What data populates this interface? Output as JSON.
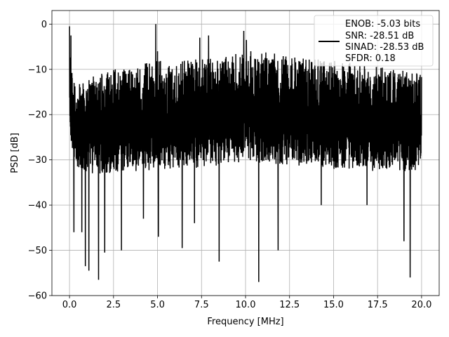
{
  "chart_data": {
    "type": "line",
    "title": "",
    "xlabel": "Frequency [MHz]",
    "ylabel": "PSD [dB]",
    "xlim": [
      -1.0,
      21.0
    ],
    "ylim": [
      -60,
      3
    ],
    "xticks": [
      0.0,
      2.5,
      5.0,
      7.5,
      10.0,
      12.5,
      15.0,
      17.5,
      20.0
    ],
    "xtick_labels": [
      "0.0",
      "2.5",
      "5.0",
      "7.5",
      "10.0",
      "12.5",
      "15.0",
      "17.5",
      "20.0"
    ],
    "yticks": [
      0,
      -10,
      -20,
      -30,
      -40,
      -50,
      -60
    ],
    "ytick_labels": [
      "0",
      "−10",
      "−20",
      "−30",
      "−40",
      "−50",
      "−60"
    ],
    "grid": true,
    "legend_position": "upper-right",
    "legend_lines": [
      "ENOB: -5.03 bits",
      "SNR: -28.51 dB",
      "SINAD: -28.53 dB",
      "SFDR: 0.18"
    ],
    "series": [
      {
        "color": "#000000",
        "upper_envelope": {
          "x": [
            0.0,
            0.3,
            0.6,
            1.0,
            1.5,
            2.0,
            2.5,
            3.0,
            3.5,
            4.0,
            4.5,
            5.0,
            5.5,
            6.0,
            6.5,
            7.0,
            7.5,
            8.0,
            8.5,
            9.0,
            9.5,
            10.0,
            10.5,
            11.0,
            11.5,
            12.0,
            12.5,
            13.0,
            13.5,
            14.0,
            14.5,
            15.0,
            15.5,
            16.0,
            16.5,
            17.0,
            17.5,
            18.0,
            18.5,
            19.0,
            19.5,
            20.0
          ],
          "y": [
            -3,
            -13,
            -12,
            -12,
            -11,
            -10.5,
            -10,
            -10,
            -9.5,
            -9,
            -8.5,
            -8,
            -8,
            -8.5,
            -8,
            -7.5,
            -7.5,
            -7.5,
            -7,
            -7,
            -6.5,
            -6,
            -6,
            -6,
            -6.5,
            -6.5,
            -7,
            -7,
            -7.5,
            -7.5,
            -8,
            -8,
            -8.5,
            -8.5,
            -9,
            -9,
            -9.5,
            -9.5,
            -10,
            -10,
            -10.5,
            -11
          ]
        },
        "lower_envelope": {
          "x": [
            0.0,
            0.3,
            0.6,
            1.0,
            1.5,
            2.0,
            2.5,
            3.0,
            3.5,
            4.0,
            4.5,
            5.0,
            5.5,
            6.0,
            6.5,
            7.0,
            7.5,
            8.0,
            8.5,
            9.0,
            9.5,
            10.0,
            10.5,
            11.0,
            11.5,
            12.0,
            12.5,
            13.0,
            13.5,
            14.0,
            14.5,
            15.0,
            15.5,
            16.0,
            16.5,
            17.0,
            17.5,
            18.0,
            18.5,
            19.0,
            19.5,
            20.0
          ],
          "y": [
            -25,
            -31,
            -32,
            -33,
            -33,
            -33,
            -33,
            -32.5,
            -32.5,
            -32.5,
            -32.5,
            -32,
            -32,
            -32,
            -32,
            -32,
            -31.5,
            -31.5,
            -31.5,
            -31,
            -31,
            -30,
            -30.5,
            -31,
            -31,
            -31,
            -31.5,
            -31.5,
            -31.5,
            -32,
            -32,
            -32,
            -32,
            -32,
            -32,
            -32.5,
            -32.5,
            -32.5,
            -32.5,
            -32.5,
            -32.5,
            -32.5
          ]
        },
        "peaks": [
          {
            "x": 0.0,
            "y": -0.5
          },
          {
            "x": 0.08,
            "y": -2.5
          },
          {
            "x": 4.9,
            "y": 0.0
          },
          {
            "x": 5.0,
            "y": -6.0
          },
          {
            "x": 7.4,
            "y": -3.0
          },
          {
            "x": 7.9,
            "y": -2.5
          },
          {
            "x": 9.9,
            "y": -1.5
          },
          {
            "x": 10.05,
            "y": -3.5
          },
          {
            "x": 10.3,
            "y": -6.0
          }
        ],
        "dips": [
          {
            "x": 0.25,
            "y": -46.0
          },
          {
            "x": 0.7,
            "y": -46.0
          },
          {
            "x": 0.9,
            "y": -53.5
          },
          {
            "x": 1.1,
            "y": -54.5
          },
          {
            "x": 1.65,
            "y": -56.5
          },
          {
            "x": 2.0,
            "y": -50.5
          },
          {
            "x": 2.95,
            "y": -50.0
          },
          {
            "x": 4.2,
            "y": -43.0
          },
          {
            "x": 5.05,
            "y": -47.0
          },
          {
            "x": 6.4,
            "y": -49.5
          },
          {
            "x": 7.1,
            "y": -44.0
          },
          {
            "x": 8.5,
            "y": -52.5
          },
          {
            "x": 10.75,
            "y": -57.0
          },
          {
            "x": 11.85,
            "y": -50.0
          },
          {
            "x": 14.3,
            "y": -40.0
          },
          {
            "x": 16.9,
            "y": -40.0
          },
          {
            "x": 19.0,
            "y": -48.0
          },
          {
            "x": 19.35,
            "y": -56.0
          }
        ]
      }
    ]
  }
}
